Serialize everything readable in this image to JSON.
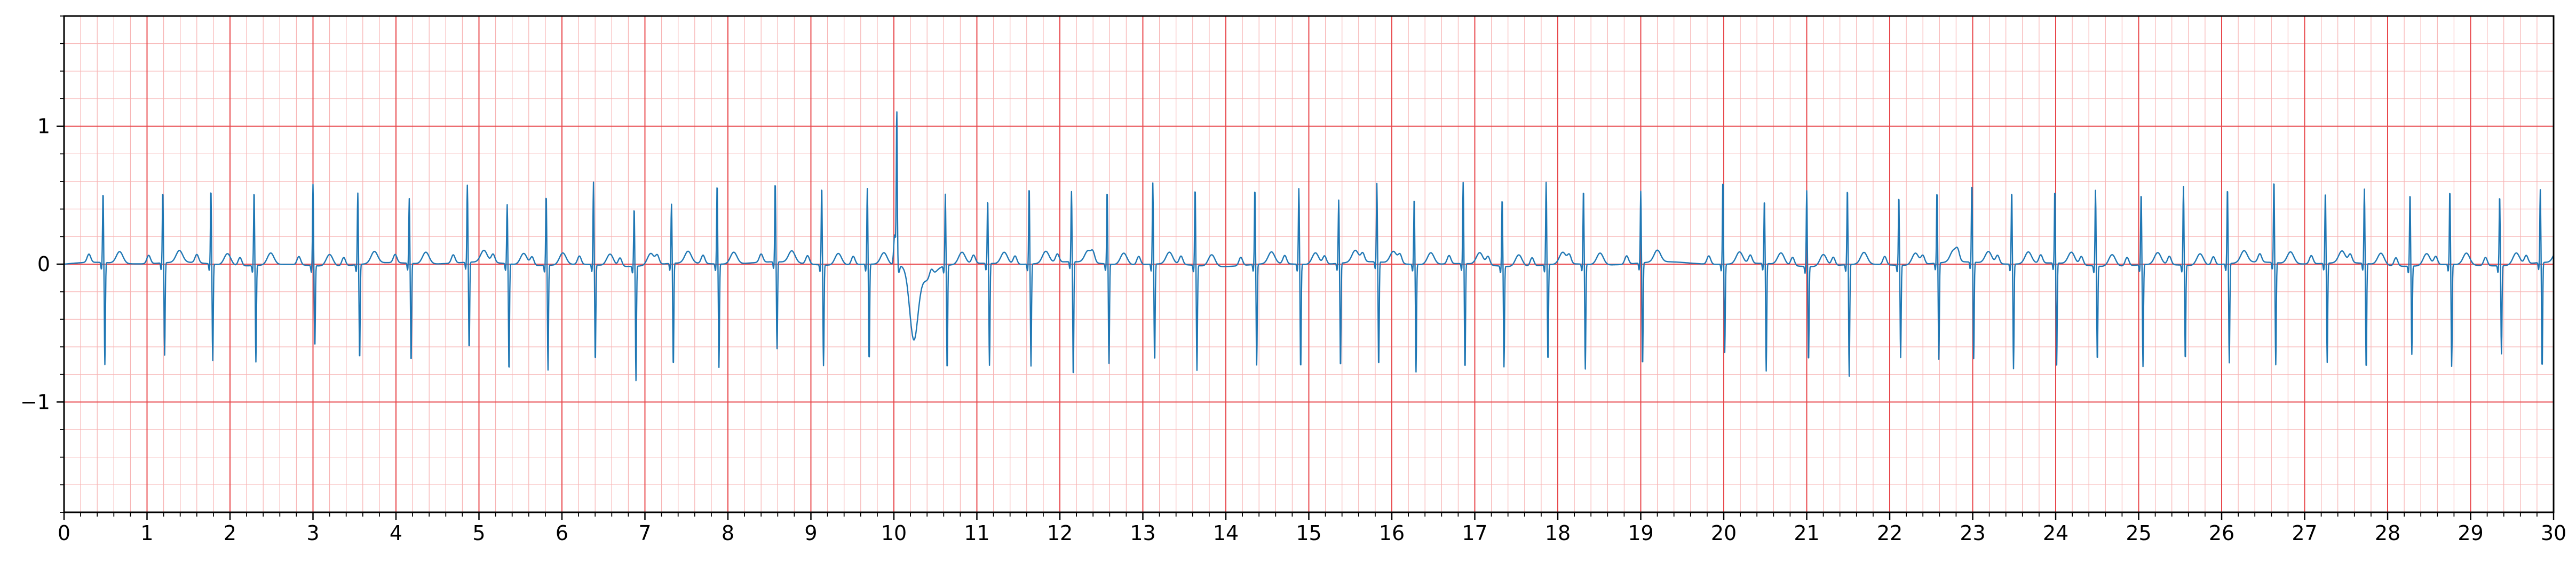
{
  "chart_data": {
    "type": "line",
    "title": "",
    "xlabel": "",
    "ylabel": "",
    "xlim": [
      0,
      30
    ],
    "ylim": [
      -1.8,
      1.8
    ],
    "x_ticks": [
      "0",
      "1",
      "2",
      "3",
      "4",
      "5",
      "6",
      "7",
      "8",
      "9",
      "10",
      "11",
      "12",
      "13",
      "14",
      "15",
      "16",
      "17",
      "18",
      "19",
      "20",
      "21",
      "22",
      "23",
      "24",
      "25",
      "26",
      "27",
      "28",
      "29",
      "30"
    ],
    "y_ticks": [
      {
        "value": -1,
        "label": "−1"
      },
      {
        "value": 0,
        "label": "0"
      },
      {
        "value": 1,
        "label": "1"
      }
    ],
    "grid": {
      "major_x": 1,
      "major_y": 1,
      "minor_x": 0.2,
      "minor_y": 0.2,
      "major_color": "#e8484c",
      "minor_color": "#f7b3b3"
    },
    "series": [
      {
        "color": "#1f77b4",
        "beats": [
          {
            "t": 0.47,
            "r": 0.52,
            "s": -0.74
          },
          {
            "t": 1.19,
            "r": 0.53,
            "s": -0.67
          },
          {
            "t": 1.77,
            "r": 0.55,
            "s": -0.7
          },
          {
            "t": 2.29,
            "r": 0.55,
            "s": -0.7
          },
          {
            "t": 3.0,
            "r": 0.59,
            "s": -0.6
          },
          {
            "t": 3.54,
            "r": 0.52,
            "s": -0.7
          },
          {
            "t": 4.16,
            "r": 0.47,
            "s": -0.73
          },
          {
            "t": 4.86,
            "r": 0.56,
            "s": -0.64
          },
          {
            "t": 5.34,
            "r": 0.43,
            "s": -0.79
          },
          {
            "t": 5.81,
            "r": 0.52,
            "s": -0.76
          },
          {
            "t": 6.38,
            "r": 0.6,
            "s": -0.71
          },
          {
            "t": 6.87,
            "r": 0.43,
            "s": -0.83
          },
          {
            "t": 7.32,
            "r": 0.43,
            "s": -0.76
          },
          {
            "t": 7.87,
            "r": 0.59,
            "s": -0.75
          },
          {
            "t": 8.57,
            "r": 0.59,
            "s": -0.63
          },
          {
            "t": 9.13,
            "r": 0.58,
            "s": -0.73
          },
          {
            "t": 9.68,
            "r": 0.55,
            "s": -0.71
          },
          {
            "t": 10.04,
            "r": 1.11,
            "s": -0.06,
            "pvc": true
          },
          {
            "t": 10.62,
            "r": 0.52,
            "s": -0.77
          },
          {
            "t": 11.13,
            "r": 0.47,
            "s": -0.74
          },
          {
            "t": 11.63,
            "r": 0.57,
            "s": -0.74
          },
          {
            "t": 12.14,
            "r": 0.51,
            "s": -0.85
          },
          {
            "t": 12.57,
            "r": 0.54,
            "s": -0.72
          },
          {
            "t": 13.12,
            "r": 0.59,
            "s": -0.72
          },
          {
            "t": 13.63,
            "r": 0.57,
            "s": -0.76
          },
          {
            "t": 14.35,
            "r": 0.56,
            "s": -0.73
          },
          {
            "t": 14.88,
            "r": 0.55,
            "s": -0.77
          },
          {
            "t": 15.36,
            "r": 0.46,
            "s": -0.77
          },
          {
            "t": 15.82,
            "r": 0.57,
            "s": -0.77
          },
          {
            "t": 16.27,
            "r": 0.49,
            "s": -0.78
          },
          {
            "t": 16.86,
            "r": 0.59,
            "s": -0.78
          },
          {
            "t": 17.33,
            "r": 0.5,
            "s": -0.73
          },
          {
            "t": 17.86,
            "r": 0.6,
            "s": -0.71
          },
          {
            "t": 18.31,
            "r": 0.55,
            "s": -0.76
          },
          {
            "t": 19.0,
            "r": 0.52,
            "s": -0.76
          },
          {
            "t": 19.99,
            "r": 0.62,
            "s": -0.64
          },
          {
            "t": 20.49,
            "r": 0.47,
            "s": -0.78
          },
          {
            "t": 21.0,
            "r": 0.55,
            "s": -0.7
          },
          {
            "t": 21.49,
            "r": 0.56,
            "s": -0.81
          },
          {
            "t": 22.11,
            "r": 0.51,
            "s": -0.67
          },
          {
            "t": 22.57,
            "r": 0.53,
            "s": -0.7
          },
          {
            "t": 22.99,
            "r": 0.58,
            "s": -0.7
          },
          {
            "t": 23.47,
            "r": 0.54,
            "s": -0.76
          },
          {
            "t": 23.99,
            "r": 0.54,
            "s": -0.74
          },
          {
            "t": 24.48,
            "r": 0.55,
            "s": -0.7
          },
          {
            "t": 25.03,
            "r": 0.53,
            "s": -0.74
          },
          {
            "t": 25.54,
            "r": 0.57,
            "s": -0.7
          },
          {
            "t": 26.07,
            "r": 0.56,
            "s": -0.72
          },
          {
            "t": 26.63,
            "r": 0.61,
            "s": -0.74
          },
          {
            "t": 27.25,
            "r": 0.53,
            "s": -0.72
          },
          {
            "t": 27.72,
            "r": 0.54,
            "s": -0.78
          },
          {
            "t": 28.27,
            "r": 0.54,
            "s": -0.64
          },
          {
            "t": 28.75,
            "r": 0.55,
            "s": -0.74
          },
          {
            "t": 29.35,
            "r": 0.52,
            "s": -0.64
          },
          {
            "t": 29.84,
            "r": 0.53,
            "s": -0.78
          }
        ]
      }
    ]
  }
}
